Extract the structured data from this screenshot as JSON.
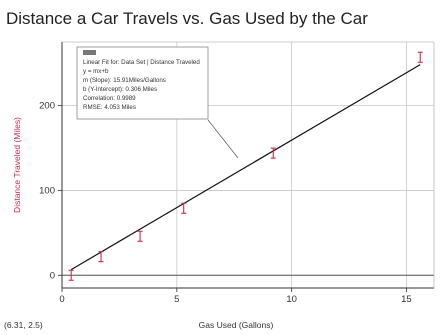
{
  "chart_data": {
    "type": "scatter",
    "title": "Distance a Car Travels vs. Gas Used by the Car",
    "xlabel": "Gas Used (Gallons)",
    "ylabel": "Distance Traveled (Miles)",
    "xlim": [
      0,
      16.2
    ],
    "ylim": [
      -15,
      275
    ],
    "xticks": [
      "0",
      "5",
      "10",
      "15"
    ],
    "yticks": [
      "0",
      "100",
      "200"
    ],
    "grid": true,
    "point_color": "#cc2b4a",
    "fit_color": "#111111",
    "ylabel_color": "#cc2b4a",
    "points": [
      {
        "x": 0.4,
        "y": 0
      },
      {
        "x": 1.7,
        "y": 22
      },
      {
        "x": 3.4,
        "y": 46
      },
      {
        "x": 5.3,
        "y": 79
      },
      {
        "x": 9.2,
        "y": 144
      },
      {
        "x": 15.6,
        "y": 257
      }
    ],
    "fit": {
      "slope": 15.9,
      "intercept": 0.306,
      "x_start": 0.4,
      "x_end": 15.6
    },
    "annotation": {
      "lines": [
        "Linear Fit for: Data Set | Distance Traveled",
        "y = mx+b",
        "m (Slope): 15.91Miles/Gallons",
        "b (Y-Intercept): 0.306 Miles",
        "Correlation: 0.9989",
        "RMSE: 4.053 Miles"
      ]
    },
    "coordinate_readout": "(6.31, 2.5)"
  }
}
